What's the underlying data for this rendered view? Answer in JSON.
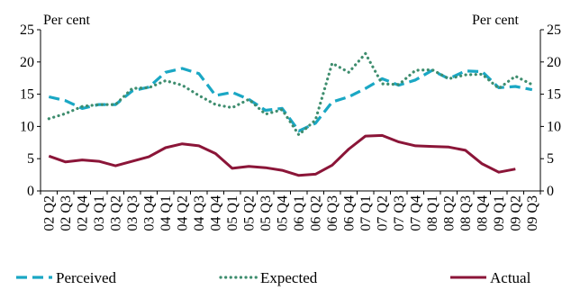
{
  "chart_data": {
    "type": "line",
    "y_unit_left": "Per cent",
    "y_unit_right": "Per cent",
    "ylim": [
      0,
      25
    ],
    "yticks": [
      0,
      5,
      10,
      15,
      20,
      25
    ],
    "categories": [
      "02 Q2",
      "02 Q3",
      "02 Q4",
      "03 Q1",
      "03 Q2",
      "03 Q3",
      "03 Q4",
      "04 Q1",
      "04 Q2",
      "04 Q3",
      "04 Q4",
      "05 Q1",
      "05 Q2",
      "05 Q3",
      "05 Q4",
      "06 Q1",
      "06 Q2",
      "06 Q3",
      "06 Q4",
      "07 Q1",
      "07 Q2",
      "07 Q3",
      "07 Q4",
      "08 Q1",
      "08 Q2",
      "08 Q3",
      "08 Q4",
      "09 Q1",
      "09 Q2",
      "09 Q3"
    ],
    "grid": false,
    "legend_position": "bottom",
    "series": [
      {
        "name": "Perceived",
        "color": "#1aa7c4",
        "style": "dashed",
        "values": [
          14.6,
          14.0,
          12.8,
          13.4,
          13.4,
          15.5,
          16.1,
          18.4,
          19.0,
          18.2,
          14.8,
          15.3,
          14.2,
          12.5,
          12.8,
          9.3,
          10.5,
          13.8,
          14.6,
          15.9,
          17.4,
          16.4,
          17.2,
          18.7,
          17.4,
          18.6,
          18.5,
          16.0,
          16.2,
          15.7
        ]
      },
      {
        "name": "Expected",
        "color": "#3e8d6e",
        "style": "dotted",
        "values": [
          11.2,
          12.0,
          13.1,
          13.4,
          13.4,
          15.9,
          16.0,
          17.1,
          16.4,
          14.8,
          13.4,
          12.9,
          14.2,
          11.9,
          12.6,
          8.7,
          11.0,
          19.8,
          18.4,
          21.3,
          16.6,
          16.5,
          18.7,
          18.8,
          17.4,
          18.0,
          18.1,
          15.9,
          17.8,
          16.5
        ]
      },
      {
        "name": "Actual",
        "color": "#8b1538",
        "style": "solid",
        "values": [
          5.4,
          4.5,
          4.8,
          4.6,
          3.9,
          4.6,
          5.3,
          6.7,
          7.3,
          7.0,
          5.8,
          3.5,
          3.8,
          3.6,
          3.2,
          2.4,
          2.6,
          4.0,
          6.5,
          8.5,
          8.6,
          7.6,
          7.0,
          6.9,
          6.8,
          6.3,
          4.2,
          2.9,
          3.4,
          null
        ]
      }
    ]
  }
}
